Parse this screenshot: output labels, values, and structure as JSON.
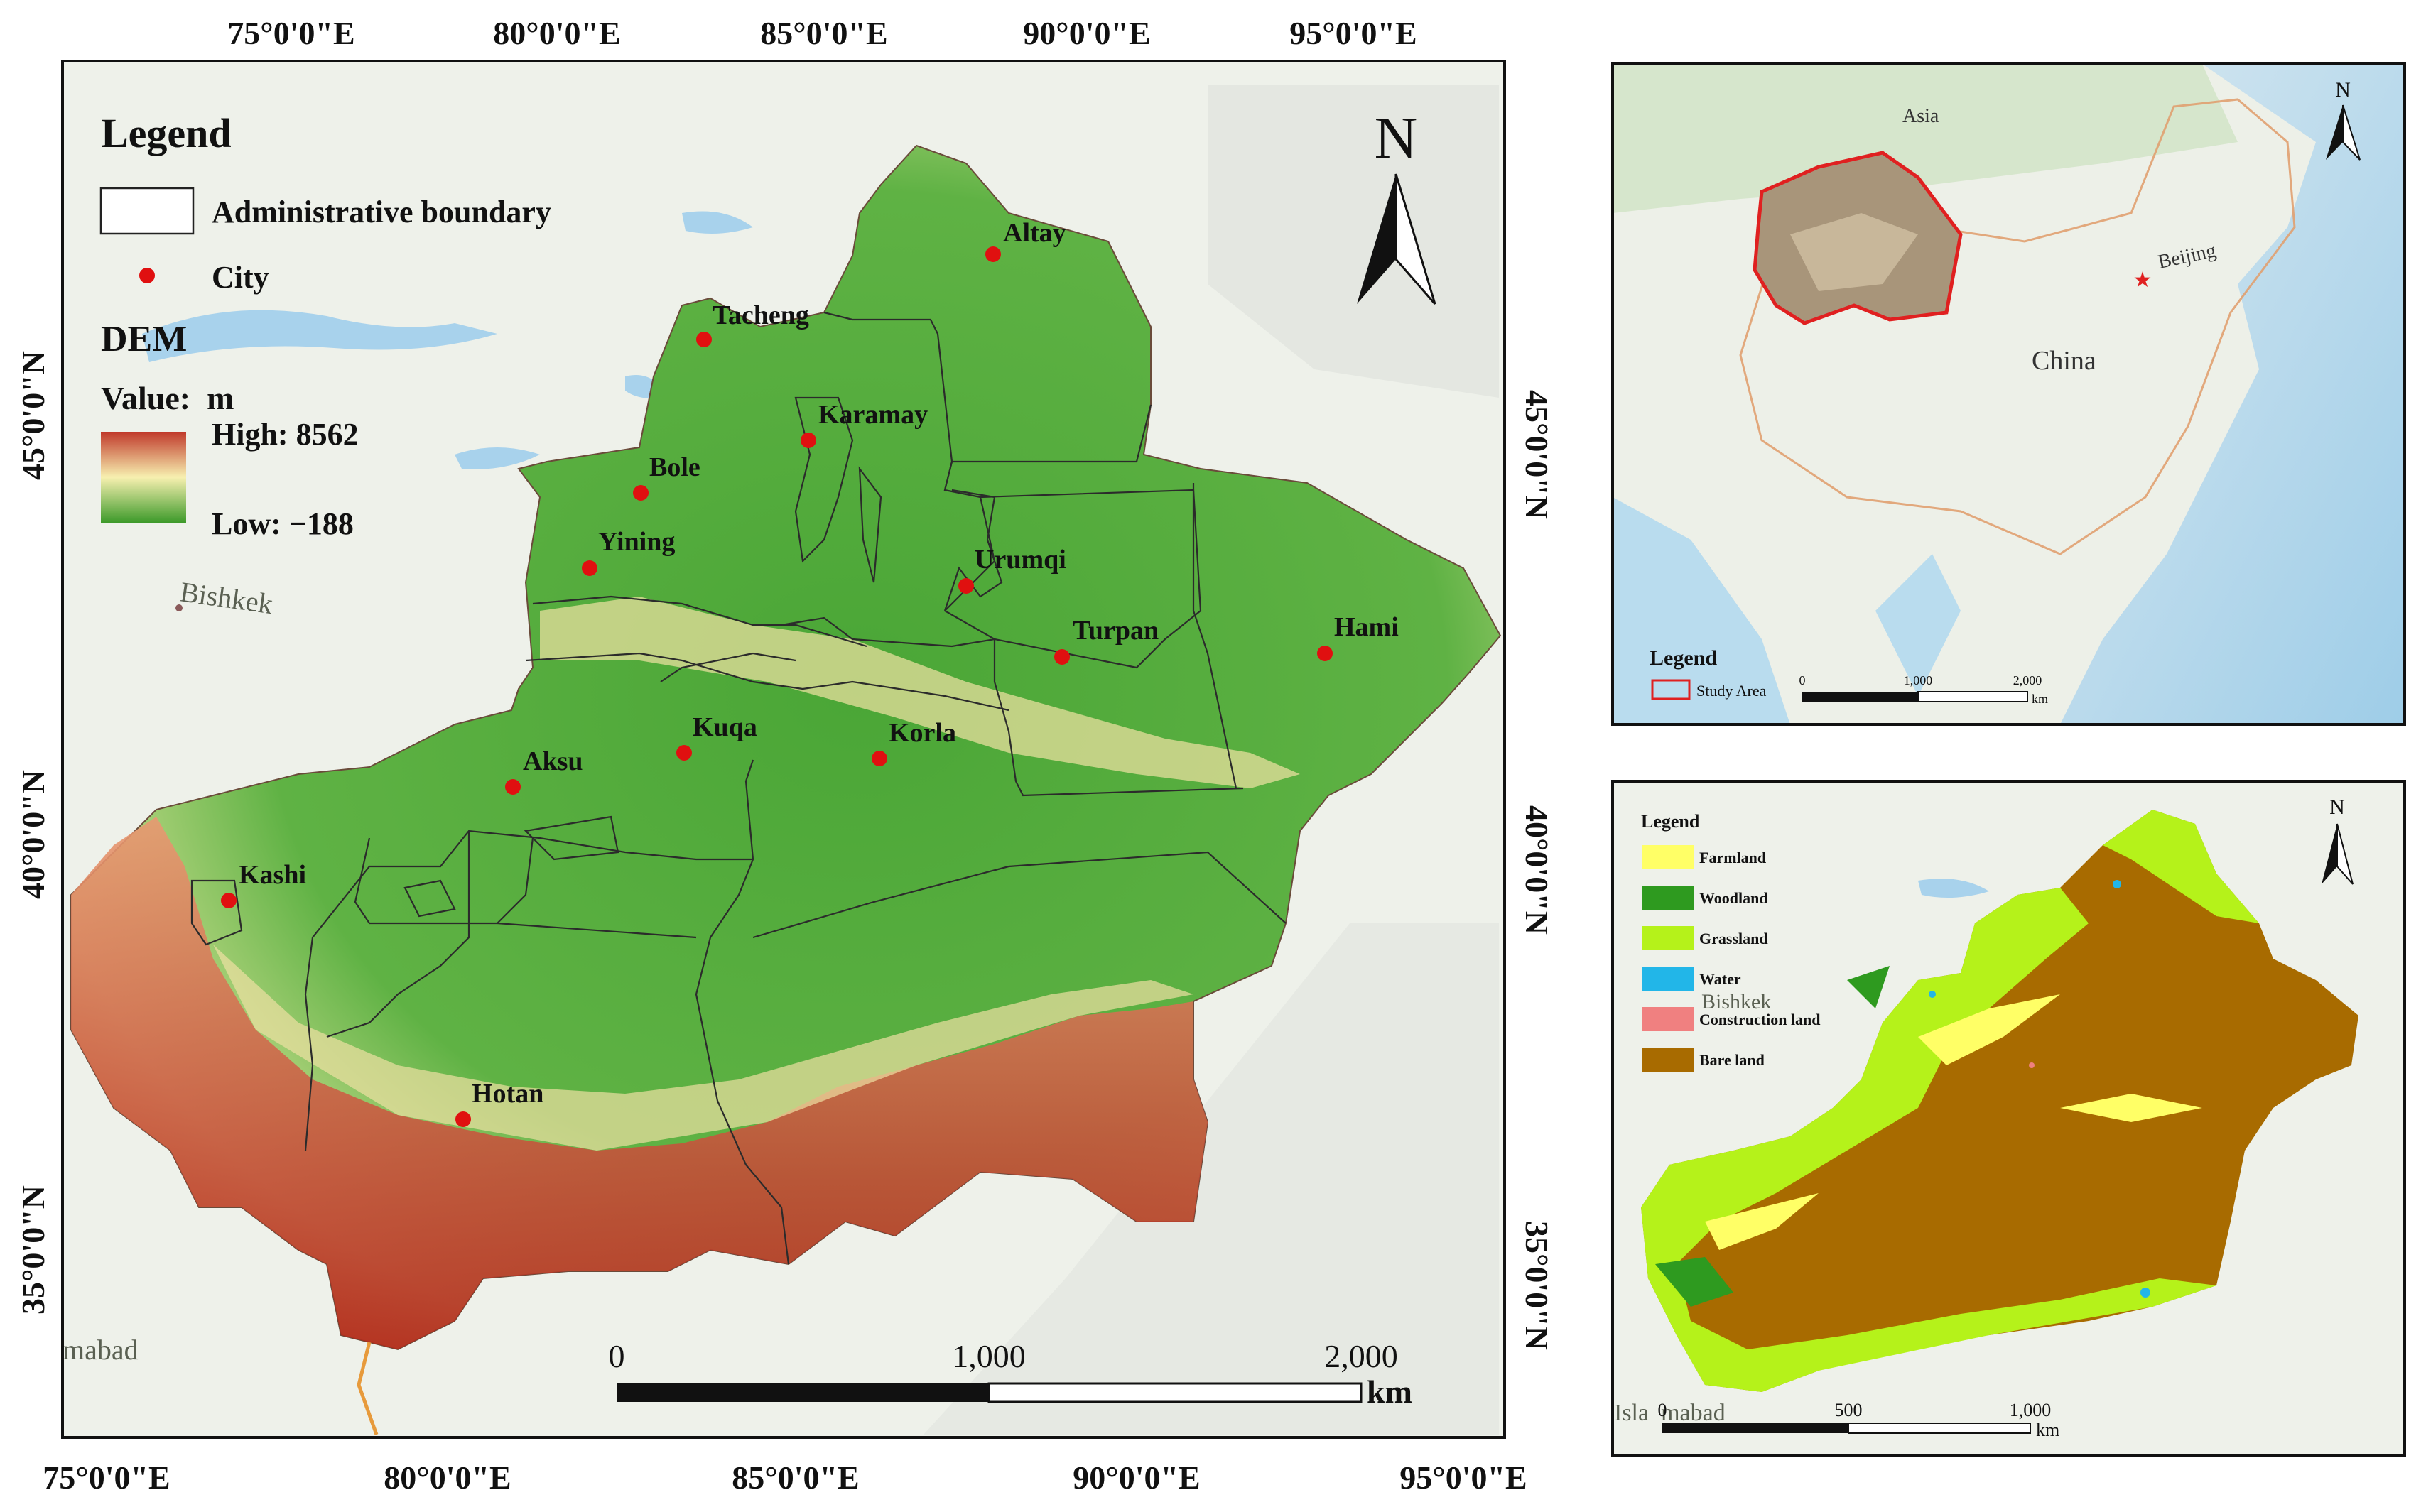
{
  "main_map": {
    "top_ticks": [
      "75°0'0\"E",
      "80°0'0\"E",
      "85°0'0\"E",
      "90°0'0\"E",
      "95°0'0\"E"
    ],
    "bottom_ticks": [
      "75°0'0\"E",
      "80°0'0\"E",
      "85°0'0\"E",
      "90°0'0\"E",
      "95°0'0\"E"
    ],
    "left_ticks": [
      "45°0'0\"N",
      "40°0'0\"N",
      "35°0'0\"N"
    ],
    "right_ticks": [
      "45°0'0\"N",
      "40°0'0\"N",
      "35°0'0\"N"
    ],
    "basemap_labels": {
      "bishkek": "Bishkek",
      "islamabad": "mabad"
    },
    "legend": {
      "title": "Legend",
      "boundary_label": "Administrative boundary",
      "city_label": "City",
      "dem_title": "DEM",
      "value_label": "Value:  m",
      "high_label": "High: 8562",
      "low_label": "Low: −188",
      "dem_colors": [
        "#c0392b",
        "#f7f0b0",
        "#3d9a2a"
      ]
    },
    "north_label": "N",
    "cities": [
      "Altay",
      "Tacheng",
      "Karamay",
      "Bole",
      "Yining",
      "Urumqi",
      "Turpan",
      "Hami",
      "Kuqa",
      "Korla",
      "Aksu",
      "Kashi",
      "Hotan"
    ],
    "city_color": "#e01010",
    "scale_bar": {
      "labels": [
        "0",
        "1,000",
        "2,000"
      ],
      "unit": "km"
    }
  },
  "inset_location": {
    "labels": {
      "asia": "Asia",
      "china": "China",
      "beijing": "Beijing"
    },
    "north_label": "N",
    "legend_title": "Legend",
    "legend_item": "Study Area",
    "study_area_color": "#e02020",
    "scale_bar": {
      "labels": [
        "0",
        "1,000",
        "2,000"
      ],
      "unit": "km"
    }
  },
  "inset_landuse": {
    "legend_title": "Legend",
    "classes": [
      {
        "label": "Farmland",
        "color": "#ffff66"
      },
      {
        "label": "Woodland",
        "color": "#2e9a1f"
      },
      {
        "label": "Grassland",
        "color": "#b5f21a"
      },
      {
        "label": "Water",
        "color": "#22b6e8"
      },
      {
        "label": "Construction land",
        "color": "#f08080"
      },
      {
        "label": "Bare land",
        "color": "#a86b00"
      }
    ],
    "basemap_labels": {
      "bishkek": "Bishkek",
      "islamabad": "Isla  mabad"
    },
    "north_label": "N",
    "scale_bar": {
      "labels": [
        "0",
        "500",
        "1,000"
      ],
      "unit": "km"
    }
  }
}
